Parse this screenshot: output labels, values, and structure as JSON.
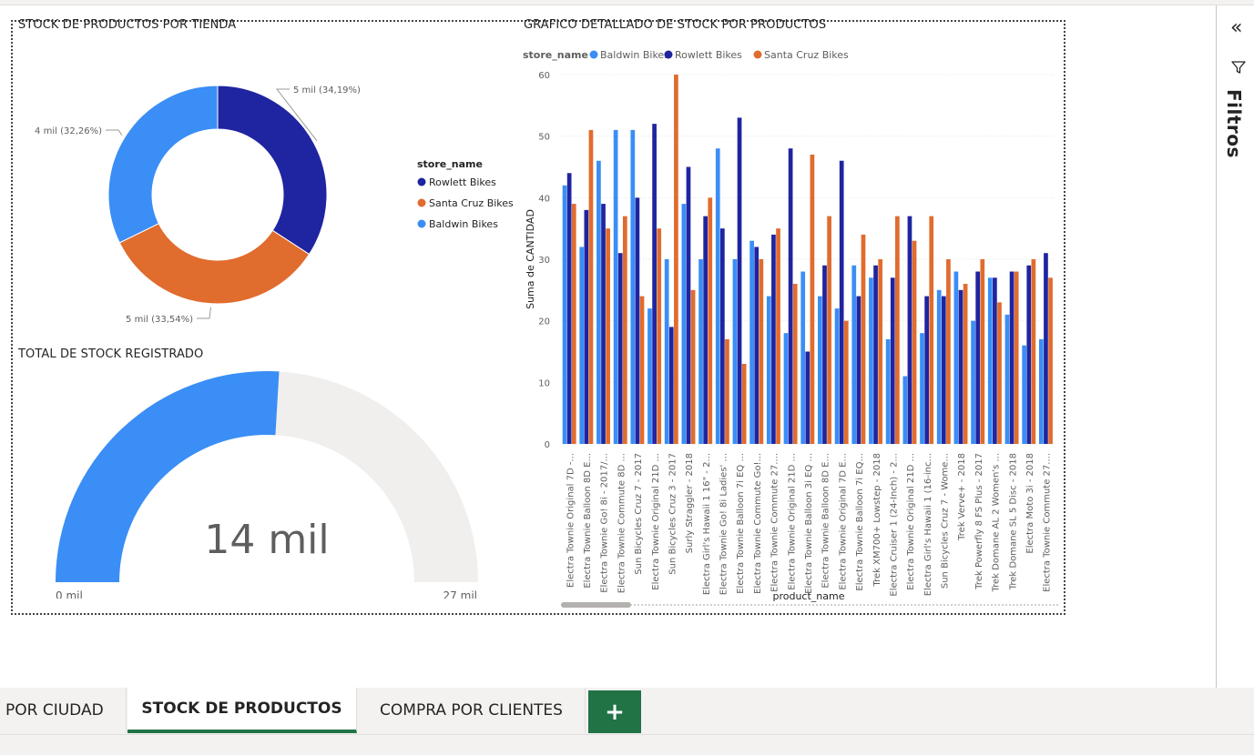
{
  "donut": {
    "title": "STOCK DE PRODUCTOS POR TIENDA",
    "legend_title": "store_name",
    "slices": [
      {
        "name": "Rowlett Bikes",
        "percent": 34.19,
        "label": "5 mil (34,19%)",
        "color": "#1f24a0"
      },
      {
        "name": "Santa Cruz Bikes",
        "percent": 33.54,
        "label": "5 mil (33,54%)",
        "color": "#e06c2e"
      },
      {
        "name": "Baldwin Bikes",
        "percent": 32.26,
        "label": "4 mil (32,26%)",
        "color": "#3a8ef5"
      }
    ]
  },
  "gauge": {
    "title": "TOTAL DE STOCK REGISTRADO",
    "value_label": "14 mil",
    "value": 14,
    "max": 27,
    "min_label": "0 mil",
    "max_label": "27 mil",
    "fill_color": "#3a8ef5",
    "track_color": "#f0efee"
  },
  "chart_data": {
    "type": "bar",
    "title": "GRAFICO DETALLADO DE STOCK POR PRODUCTOS",
    "legend_title": "store_name",
    "xlabel": "product_name",
    "ylabel": "Suma de CANTIDAD",
    "ylim": [
      0,
      60
    ],
    "yticks": [
      0,
      10,
      20,
      30,
      40,
      50,
      60
    ],
    "grid": true,
    "legend_position": "top-left",
    "categories": [
      "Electra Townie Original 7D -...",
      "Electra Townie Balloon 8D E...",
      "Electra Townie Go! 8i - 2017/...",
      "Electra Townie Commute 8D ...",
      "Sun Bicycles Cruz 7 - 2017",
      "Electra Townie Original 21D ...",
      "Sun Bicycles Cruz 3 - 2017",
      "Surly Straggler - 2018",
      "Electra Girl's Hawaii 1 16\" - 2...",
      "Electra Townie Go! 8i Ladies' ...",
      "Electra Townie Balloon 7i EQ ...",
      "Electra Townie Commute Go!...",
      "Electra Townie Commute 27....",
      "Electra Townie Original 21D ...",
      "Electra Townie Balloon 3i EQ ...",
      "Electra Townie Balloon 8D E...",
      "Electra Townie Original 7D E...",
      "Electra Townie Balloon 7i EQ...",
      "Trek XM700+ Lowstep - 2018",
      "Electra Cruiser 1 (24-Inch) - 2...",
      "Electra Townie Original 21D ...",
      "Electra Girl's Hawaii 1 (16-inc...",
      "Sun Bicycles Cruz 7 - Wome...",
      "Trek Verve+ - 2018",
      "Trek Powerfly 8 FS Plus - 2017",
      "Trek Domane AL 2 Women's ...",
      "Trek Domane SL 5 Disc - 2018",
      "Electra Moto 3i - 2018",
      "Electra Townie Commute 27...."
    ],
    "series": [
      {
        "name": "Baldwin Bikes",
        "color": "#3a8ef5",
        "values": [
          42,
          32,
          46,
          51,
          51,
          22,
          30,
          39,
          30,
          48,
          30,
          33,
          24,
          18,
          28,
          24,
          22,
          29,
          27,
          17,
          11,
          18,
          25,
          28,
          20,
          27,
          21,
          16,
          17
        ]
      },
      {
        "name": "Rowlett Bikes",
        "color": "#1f24a0",
        "values": [
          44,
          38,
          39,
          31,
          40,
          52,
          19,
          45,
          37,
          35,
          53,
          32,
          34,
          48,
          15,
          29,
          46,
          24,
          29,
          27,
          37,
          24,
          24,
          25,
          28,
          27,
          28,
          29,
          31
        ]
      },
      {
        "name": "Santa Cruz Bikes",
        "color": "#e06c2e",
        "values": [
          39,
          51,
          35,
          37,
          24,
          35,
          60,
          25,
          40,
          17,
          13,
          30,
          35,
          26,
          47,
          37,
          20,
          34,
          30,
          37,
          33,
          37,
          30,
          26,
          30,
          23,
          28,
          30,
          27
        ]
      }
    ]
  },
  "filters": {
    "label": "Filtros"
  },
  "tabs": {
    "items": [
      "POR CIUDAD",
      "STOCK DE PRODUCTOS",
      "COMPRA POR CLIENTES"
    ],
    "add_label": "+"
  }
}
